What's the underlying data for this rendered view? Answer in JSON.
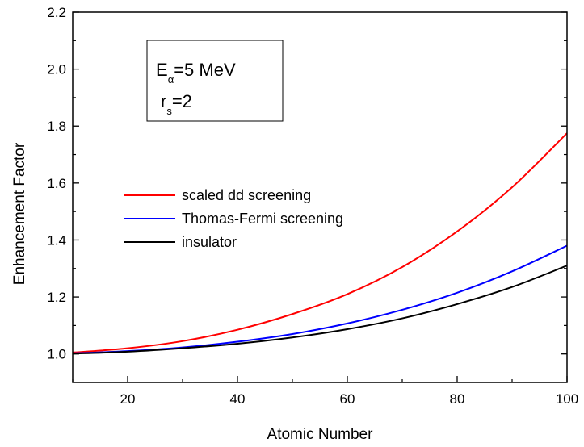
{
  "chart_data": {
    "type": "line",
    "xlabel": "Atomic Number",
    "ylabel": "Enhancement Factor",
    "xlim": [
      10,
      100
    ],
    "ylim": [
      0.9,
      2.2
    ],
    "xticks": [
      20,
      40,
      60,
      80,
      100
    ],
    "yticks": [
      1.0,
      1.2,
      1.4,
      1.6,
      1.8,
      2.0,
      2.2
    ],
    "xtick_labels": [
      "20",
      "40",
      "60",
      "80",
      "100"
    ],
    "ytick_labels": [
      "1.0",
      "1.2",
      "1.4",
      "1.6",
      "1.8",
      "2.0",
      "2.2"
    ],
    "grid": false,
    "legend_position": "center-left",
    "annotation": {
      "line1_main": "E",
      "line1_sub": "α",
      "line1_rest": "=5 MeV",
      "line2_main": "r",
      "line2_sub": "s",
      "line2_rest": "=2"
    },
    "x": [
      10,
      20,
      30,
      40,
      50,
      60,
      70,
      80,
      90,
      100
    ],
    "series": [
      {
        "name": "scaled dd screening",
        "color": "#ff0000",
        "values": [
          1.005,
          1.02,
          1.045,
          1.085,
          1.14,
          1.21,
          1.305,
          1.43,
          1.585,
          1.775
        ]
      },
      {
        "name": "Thomas-Fermi screening",
        "color": "#0000ff",
        "values": [
          1.002,
          1.01,
          1.023,
          1.043,
          1.07,
          1.107,
          1.155,
          1.215,
          1.29,
          1.38
        ]
      },
      {
        "name": "insulator",
        "color": "#000000",
        "values": [
          1.001,
          1.008,
          1.02,
          1.036,
          1.058,
          1.087,
          1.125,
          1.175,
          1.235,
          1.31
        ]
      }
    ]
  }
}
